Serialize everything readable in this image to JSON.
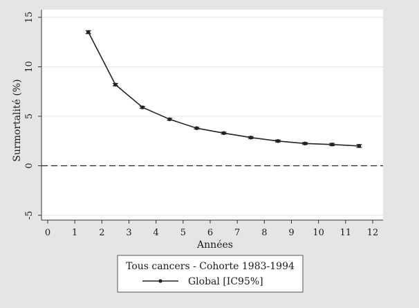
{
  "chart_data": {
    "type": "line",
    "title": "",
    "xlabel": "Années",
    "ylabel": "Surmortalité (%)",
    "xlim": [
      0,
      12
    ],
    "ylim": [
      -5,
      15
    ],
    "xticks": [
      0,
      1,
      2,
      3,
      4,
      5,
      6,
      7,
      8,
      9,
      10,
      11,
      12
    ],
    "yticks": [
      -5,
      0,
      5,
      10,
      15
    ],
    "grid": "horizontal",
    "reference_line": {
      "y": 0,
      "style": "dashed"
    },
    "legend": {
      "title": "Tous cancers - Cohorte 1983-1994",
      "position": "bottom"
    },
    "series": [
      {
        "name": "Global [IC95%]",
        "color": "#222222",
        "marker": "dot",
        "x": [
          1.5,
          2.5,
          3.5,
          4.5,
          5.5,
          6.5,
          7.5,
          8.5,
          9.5,
          10.5,
          11.5
        ],
        "y": [
          13.5,
          8.2,
          5.9,
          4.7,
          3.8,
          3.3,
          2.85,
          2.5,
          2.25,
          2.15,
          2.0
        ],
        "ci_low": [
          13.35,
          8.08,
          5.8,
          4.6,
          3.72,
          3.2,
          2.75,
          2.4,
          2.15,
          2.03,
          1.85
        ],
        "ci_high": [
          13.65,
          8.32,
          6.0,
          4.8,
          3.88,
          3.4,
          2.95,
          2.6,
          2.35,
          2.27,
          2.15
        ]
      }
    ]
  }
}
